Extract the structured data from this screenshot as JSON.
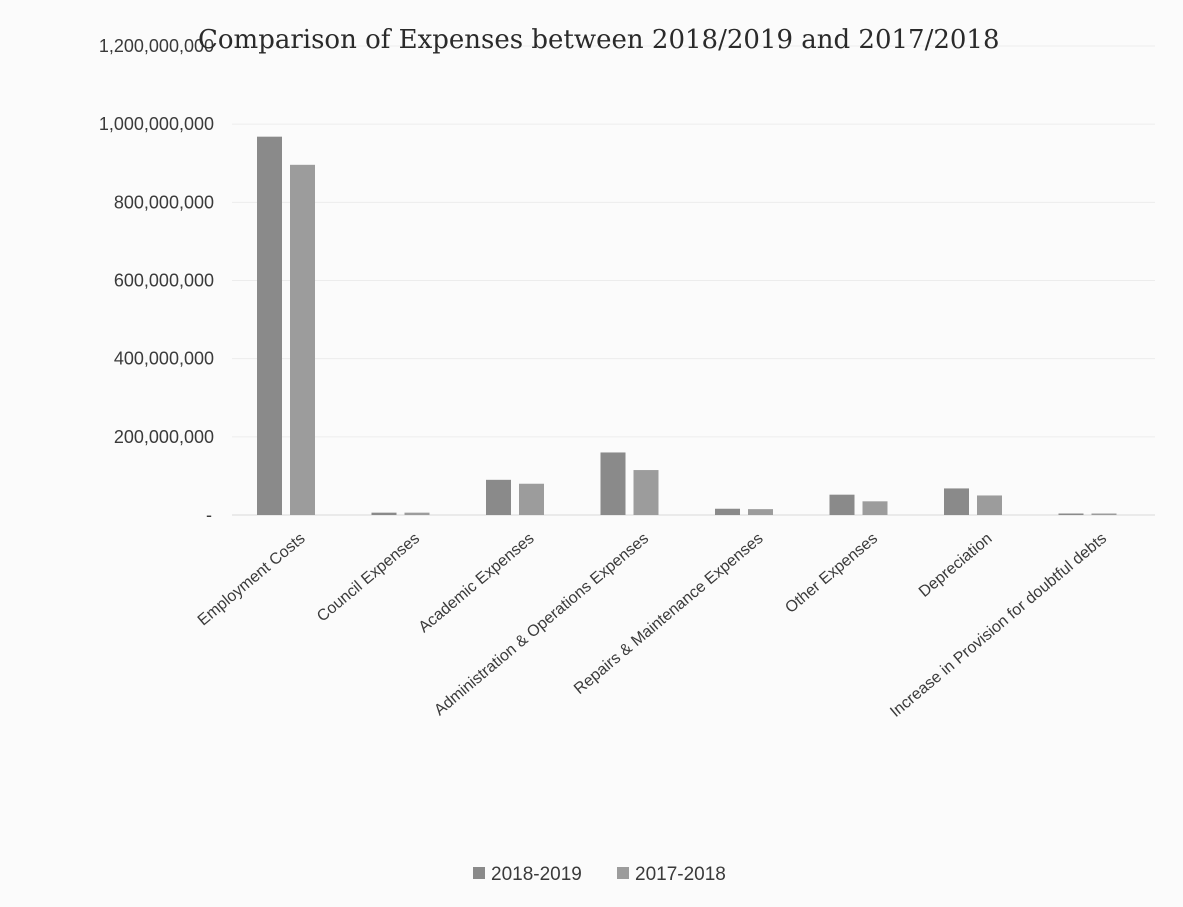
{
  "chart_data": {
    "type": "bar",
    "title": "Comparison of Expenses between 2018/2019 and 2017/2018",
    "xlabel": "",
    "ylabel": "",
    "ylim": [
      0,
      1200000000
    ],
    "yticks": [
      0,
      200000000,
      400000000,
      600000000,
      800000000,
      1000000000,
      1200000000
    ],
    "ytick_labels": [
      "-",
      "200,000,000",
      "400,000,000",
      "600,000,000",
      "800,000,000",
      "1,000,000,000",
      "1,200,000,000"
    ],
    "grid": true,
    "legend_position": "bottom",
    "categories": [
      "Employment Costs",
      "Council Expenses",
      "Academic Expenses",
      "Administration & Operations Expenses",
      "Repairs & Maintenance Expenses",
      "Other Expenses",
      "Depreciation",
      "Increase in Provision for doubtful debts"
    ],
    "series": [
      {
        "name": "2018-2019",
        "color": "#8a8a8a",
        "values": [
          968000000,
          6000000,
          90000000,
          160000000,
          16000000,
          52000000,
          68000000,
          3000000
        ]
      },
      {
        "name": "2017-2018",
        "color": "#9c9c9c",
        "values": [
          896000000,
          6000000,
          80000000,
          115000000,
          15000000,
          35000000,
          50000000,
          2000000
        ]
      }
    ]
  }
}
